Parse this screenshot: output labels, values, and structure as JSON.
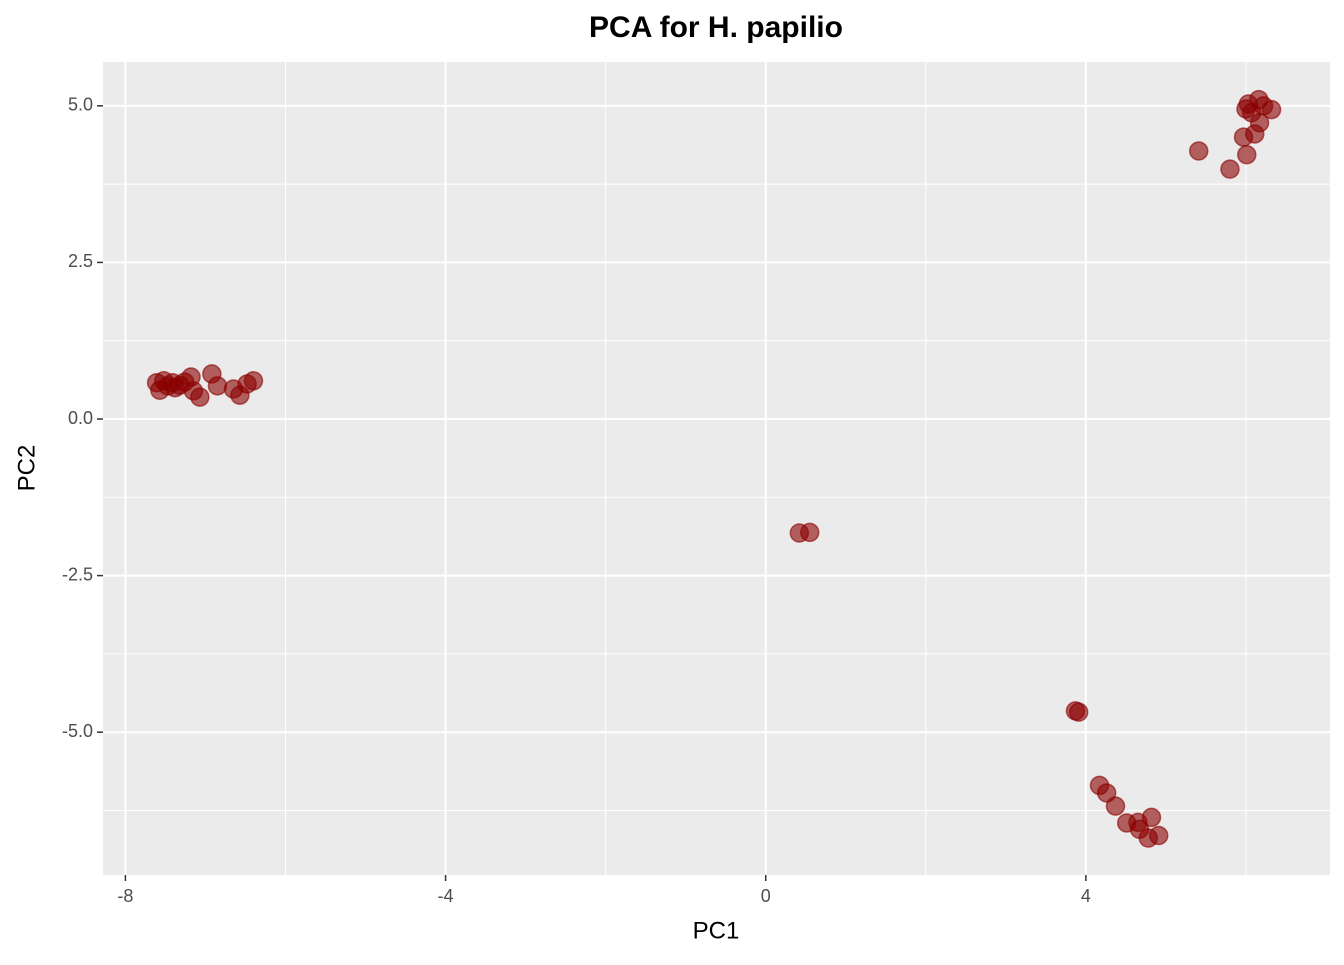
{
  "chart_data": {
    "type": "scatter",
    "title": "PCA for H. papilio",
    "x_label": "PC1",
    "y_label": "PC2",
    "xlim": [
      -8.28,
      7.05
    ],
    "ylim": [
      -7.28,
      5.7
    ],
    "xticks": [
      -8,
      -4,
      0,
      4
    ],
    "yticks": [
      {
        "value": 5,
        "label": "5.0"
      },
      2.5,
      {
        "value": 0,
        "label": "0.0"
      },
      -2.5,
      {
        "value": -5,
        "label": "-5.0"
      }
    ],
    "x_minor_ticks": [
      -6,
      -2,
      2,
      6
    ],
    "y_minor_ticks": [
      3.75,
      1.25,
      -1.25,
      -3.75,
      -6.25
    ],
    "grid": true,
    "color": "#8b0000",
    "x": [
      -7.61,
      -7.57,
      -7.52,
      -7.47,
      -7.41,
      -7.38,
      -7.32,
      -7.26,
      -7.18,
      -7.15,
      -7.07,
      -6.92,
      -6.85,
      -6.65,
      -6.57,
      -6.48,
      -6.4,
      0.42,
      0.55,
      3.87,
      3.91,
      4.17,
      4.26,
      4.37,
      4.51,
      4.65,
      4.67,
      4.82,
      4.78,
      4.91,
      5.41,
      5.8,
      6.01,
      5.97,
      6.11,
      6.17,
      6.0,
      6.03,
      6.07,
      6.16,
      6.22,
      6.32
    ],
    "values": [
      0.58,
      0.46,
      0.61,
      0.53,
      0.58,
      0.5,
      0.54,
      0.59,
      0.67,
      0.45,
      0.35,
      0.72,
      0.53,
      0.48,
      0.38,
      0.56,
      0.61,
      -1.82,
      -1.81,
      -4.66,
      -4.68,
      -5.85,
      -5.97,
      -6.18,
      -6.45,
      -6.44,
      -6.55,
      -6.36,
      -6.69,
      -6.65,
      4.28,
      3.99,
      4.22,
      4.5,
      4.55,
      4.73,
      4.95,
      5.03,
      4.89,
      5.1,
      5.0,
      4.94
    ]
  }
}
